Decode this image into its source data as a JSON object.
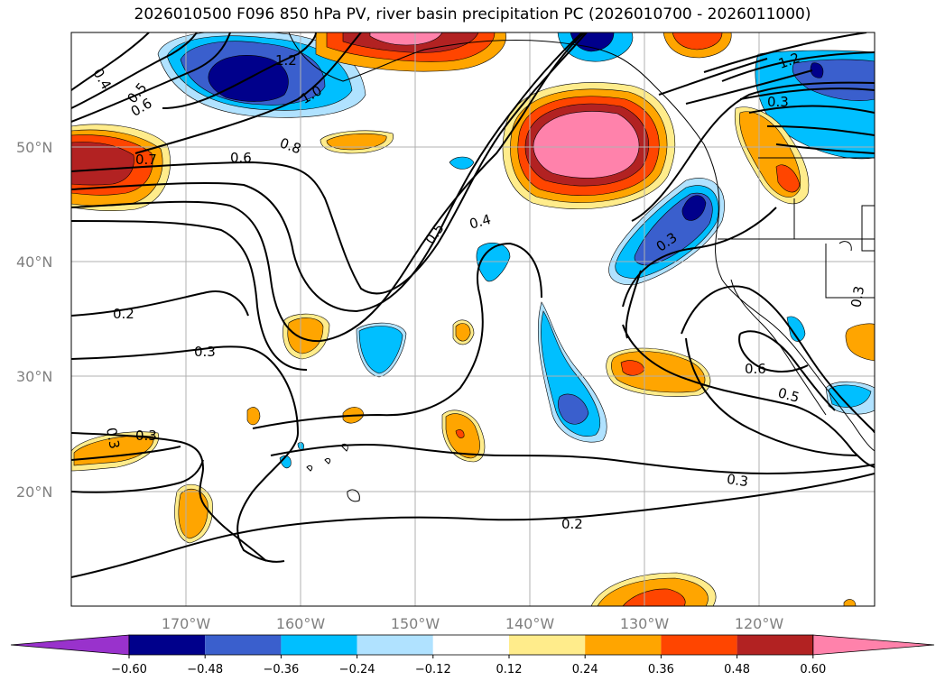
{
  "title": "2026010500 F096 850 hPa PV, river basin precipitation PC (2026010700 - 2026011000)",
  "lat_labels": [
    "50°N",
    "40°N",
    "30°N",
    "20°N"
  ],
  "lon_labels": [
    "170°W",
    "160°W",
    "150°W",
    "140°W",
    "130°W",
    "120°W"
  ],
  "contour_labels": [
    "0.4",
    "0.5",
    "0.6",
    "1.2",
    "1.0",
    "0.7",
    "0.6",
    "0.8",
    "0.5",
    "0.4",
    "0.3",
    "0.2",
    "0.3",
    "0.3",
    "0.3",
    "0.2",
    "0.3",
    "0.6",
    "0.5",
    "0.3",
    "1.2",
    "0.3"
  ],
  "colorbar": {
    "ticks": [
      "−0.60",
      "−0.48",
      "−0.36",
      "−0.24",
      "−0.12",
      "0.12",
      "0.24",
      "0.36",
      "0.48",
      "0.60"
    ],
    "colors": [
      "#9932cc",
      "#00008b",
      "#3a5fcd",
      "#00bfff",
      "#b0e2ff",
      "#ffffff",
      "#ffec8b",
      "#ffa500",
      "#ff4500",
      "#b22222",
      "#ff82ab"
    ]
  },
  "palette": {
    "neg_060": "#9932cc",
    "neg_048": "#00008b",
    "neg_036": "#3a5fcd",
    "neg_024": "#00bfff",
    "neg_012": "#b0e2ff",
    "pos_012": "#ffec8b",
    "pos_024": "#ffa500",
    "pos_036": "#ff4500",
    "pos_048": "#b22222",
    "pos_060": "#ff82ab"
  }
}
